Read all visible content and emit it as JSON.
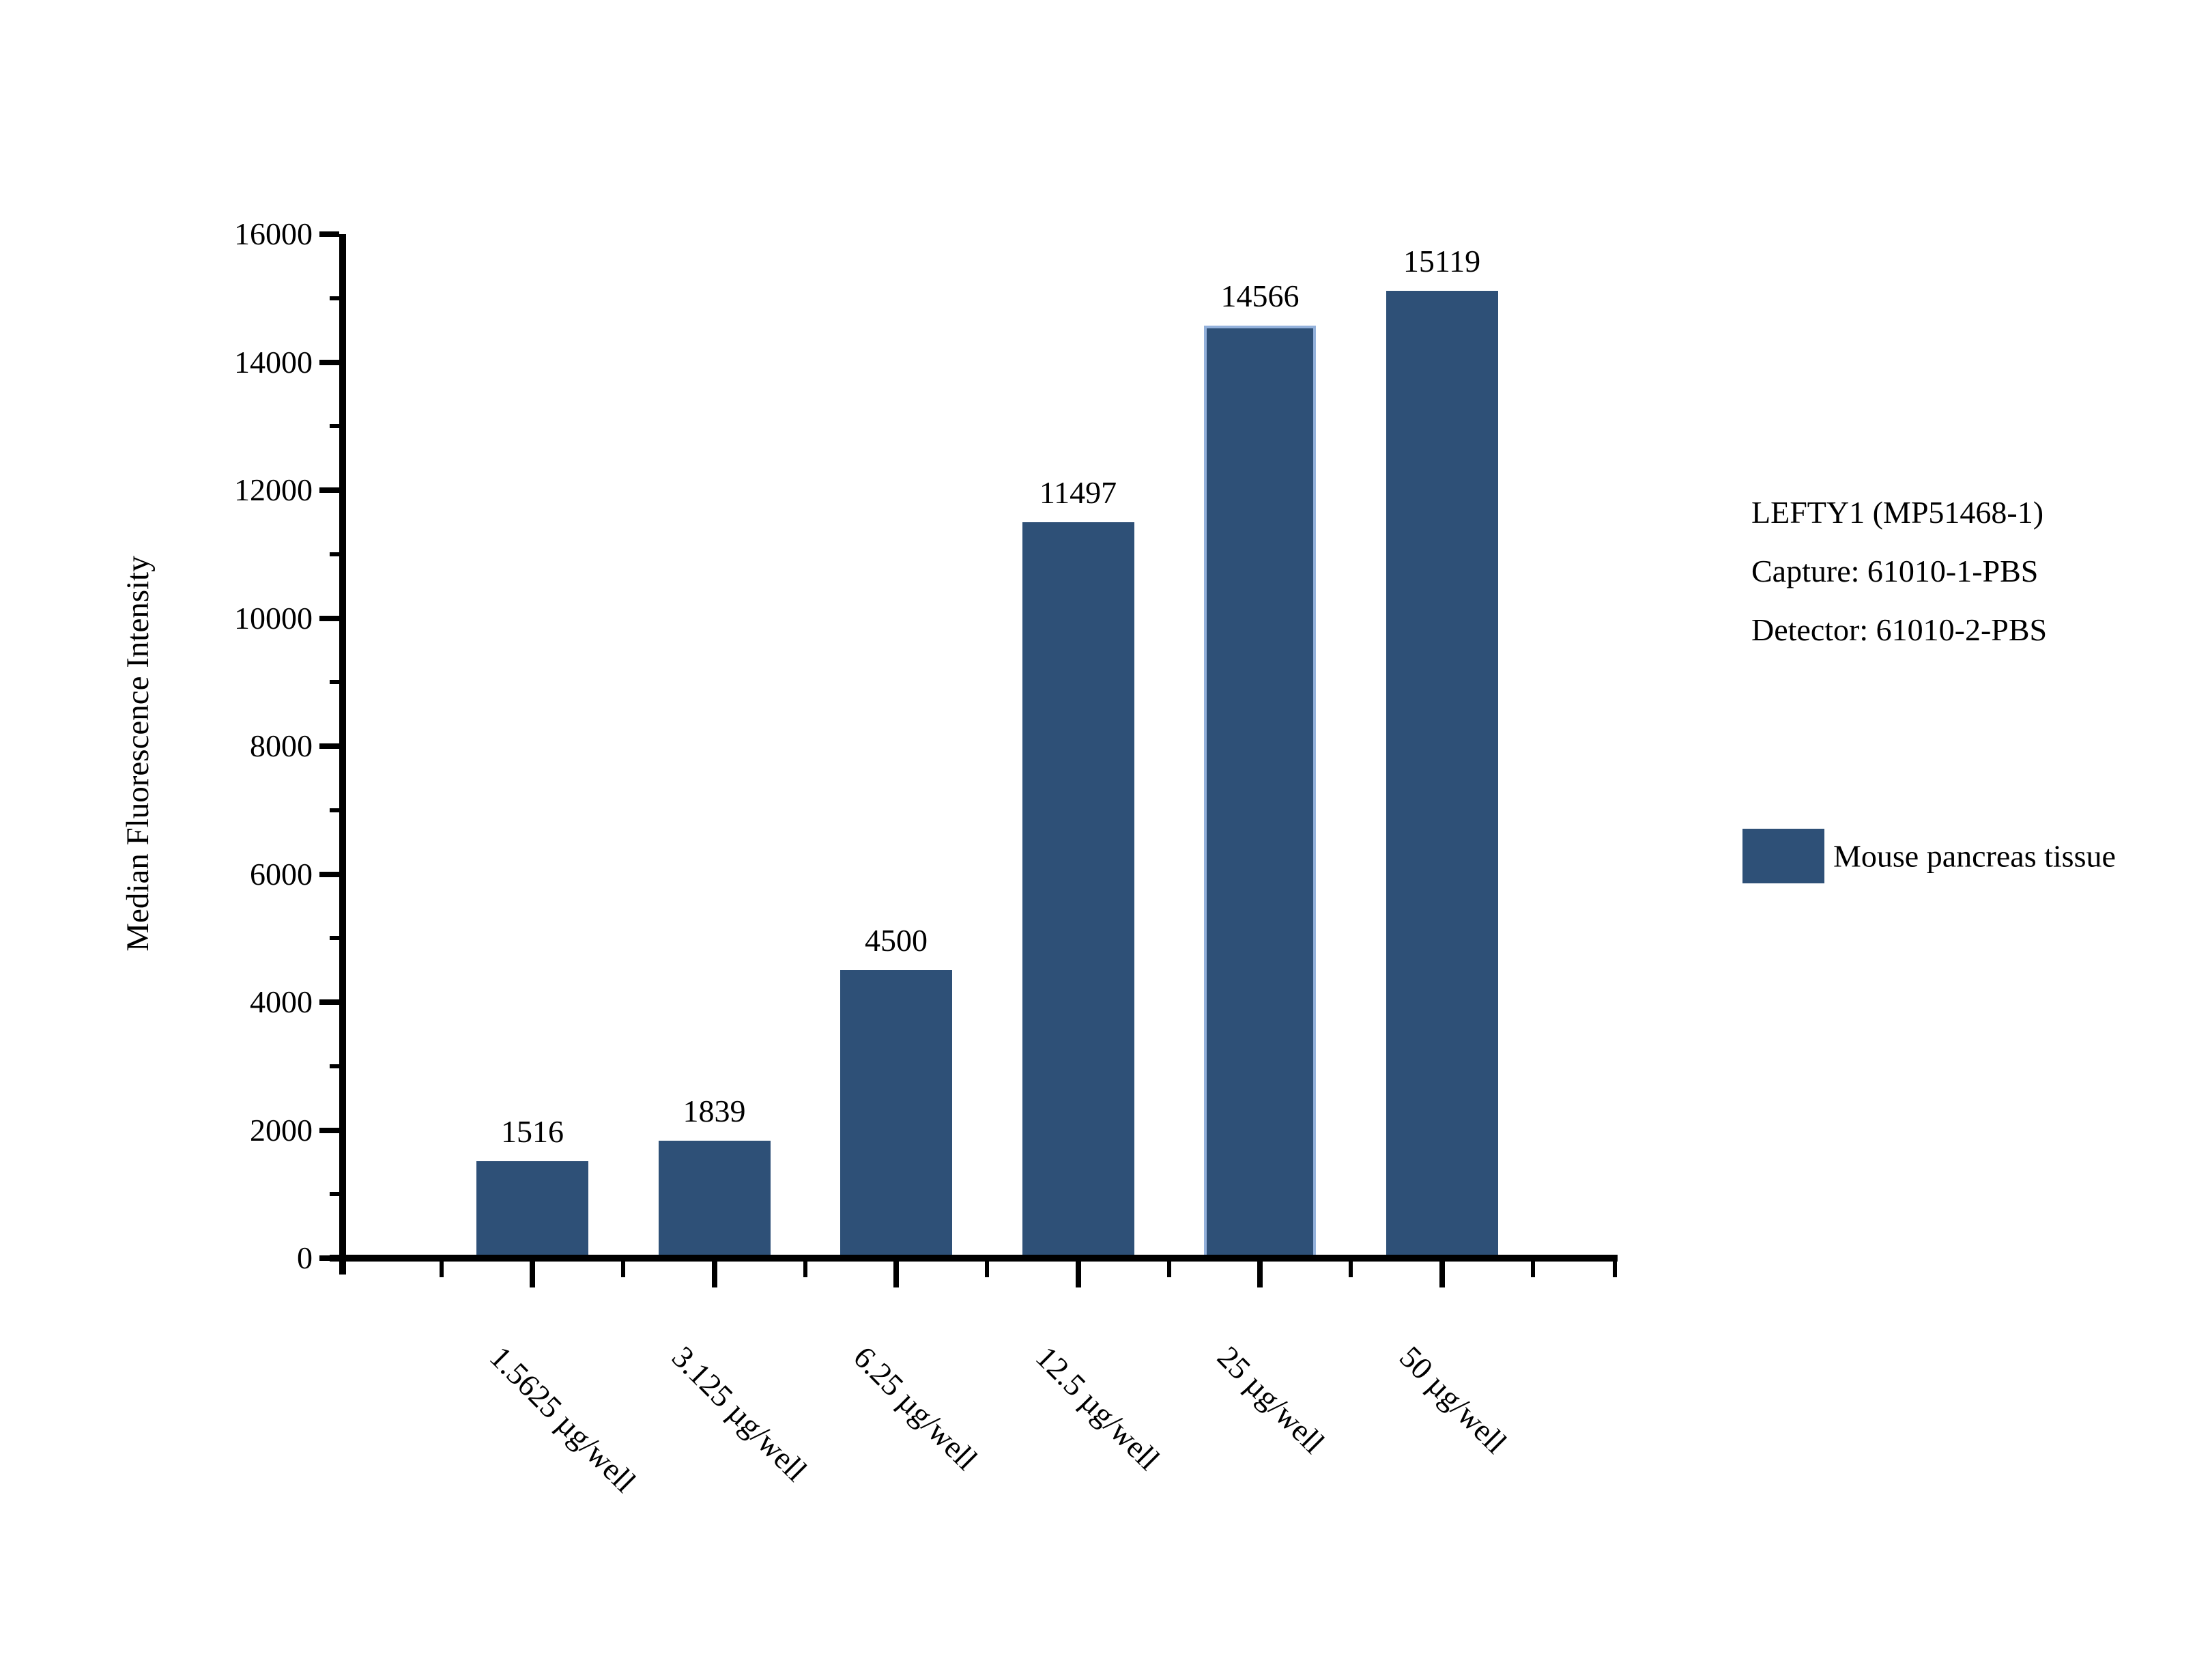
{
  "chart_data": {
    "type": "bar",
    "title": "",
    "categories": [
      "1.5625 µg/well",
      "3.125 µg/well",
      "6.25 µg/well",
      "12.5 µg/well",
      "25 µg/well",
      "50 µg/well"
    ],
    "values": [
      1516,
      1839,
      4500,
      11497,
      14566,
      15119
    ],
    "value_labels": [
      "1516",
      "1839",
      "4500",
      "11497",
      "14566",
      "15119"
    ],
    "xlabel": "",
    "ylabel": "Median Fluorescence Intensity",
    "ylim": [
      0,
      16000
    ],
    "y_major_step": 2000,
    "y_minor_step": 1000,
    "grid": "off",
    "legend_position": "right",
    "bar_color": "#2E5077",
    "highlighted_bar_index": 4,
    "highlight_border_color": "#93B1DB"
  },
  "annotation": {
    "lines": [
      "LEFTY1 (MP51468-1)",
      "Capture: 61010-1-PBS",
      "Detector: 61010-2-PBS"
    ]
  },
  "legend": {
    "label": "Mouse pancreas tissue",
    "swatch_color": "#2E5077"
  },
  "axis": {
    "color": "#000000"
  }
}
